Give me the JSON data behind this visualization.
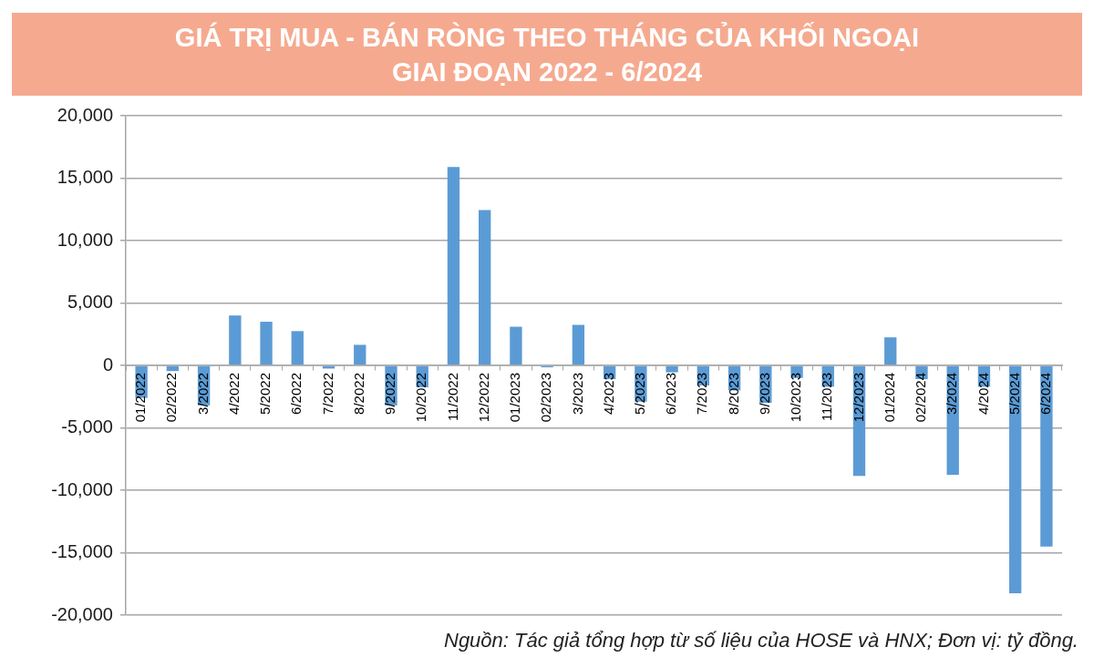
{
  "chart_data": {
    "type": "bar",
    "title": "GIÁ TRỊ MUA - BÁN RÒNG THEO THÁNG CỦA KHỐI NGOẠI\nGIAI ĐOẠN 2022 - 6/2024",
    "categories": [
      "01/2022",
      "02/2022",
      "3/2022",
      "4/2022",
      "5/2022",
      "6/2022",
      "7/2022",
      "8/2022",
      "9/2022",
      "10/2022",
      "11/2022",
      "12/2022",
      "01/2023",
      "02/2023",
      "3/2023",
      "4/2023",
      "5/2023",
      "6/2023",
      "7/2023",
      "8/2023",
      "9/2023",
      "10/2023",
      "11/2023",
      "12/2023",
      "01/2024",
      "02/2024",
      "3/2024",
      "4/2024",
      "5/2024",
      "6/2024"
    ],
    "values": [
      -2600,
      -450,
      -3200,
      4000,
      3500,
      2750,
      -250,
      1650,
      -3200,
      -1750,
      15900,
      12450,
      3100,
      -150,
      3250,
      -1100,
      -2900,
      -550,
      -1600,
      -2000,
      -3000,
      -1000,
      -1700,
      -8850,
      2250,
      -1100,
      -8750,
      -1700,
      -18250,
      -14500
    ],
    "color": "#5b9bd5",
    "ylim": [
      -20000,
      20000
    ],
    "yticks": [
      {
        "value": -20000,
        "label": "-20,000"
      },
      {
        "value": -15000,
        "label": "-15,000"
      },
      {
        "value": -10000,
        "label": "-10,000"
      },
      {
        "value": -5000,
        "label": "-5,000"
      },
      0,
      {
        "value": 5000,
        "label": "5,000"
      },
      {
        "value": 10000,
        "label": "10,000"
      },
      {
        "value": 15000,
        "label": "15,000"
      },
      {
        "value": 20000,
        "label": "20,000"
      }
    ],
    "grid": "y",
    "annotations": [
      "Nguồn: Tác giả tổng hợp từ số liệu của HOSE và HNX; Đơn vị: tỷ đồng."
    ]
  }
}
